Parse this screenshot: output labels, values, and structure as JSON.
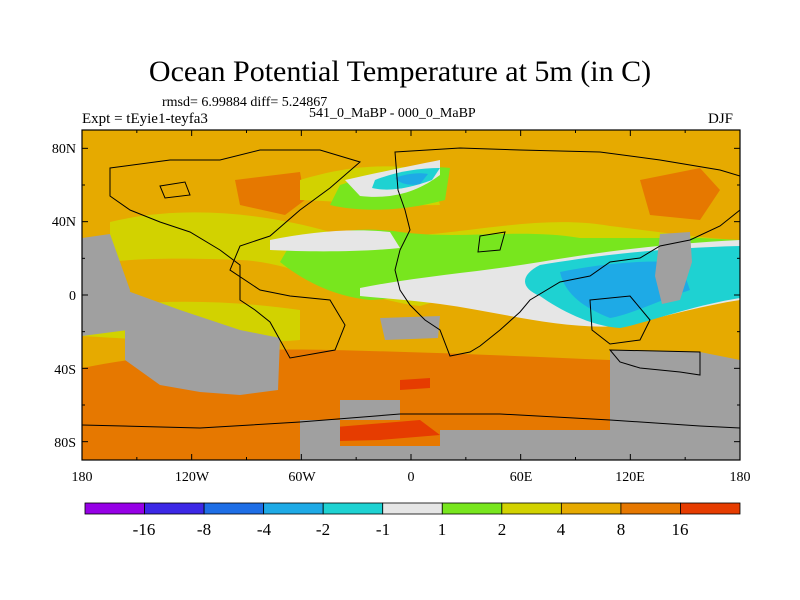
{
  "figure": {
    "title": "Ocean Potential Temperature at 5m (in C)",
    "stats": "rmsd= 6.99884 diff= 5.24867",
    "subtitle": "541_0_MaBP - 000_0_MaBP",
    "experiment": "Expt = tEyie1-teyfa3",
    "season": "DJF"
  },
  "map": {
    "lat_labels": [
      "80N",
      "40N",
      "0",
      "40S",
      "80S"
    ],
    "lon_labels": [
      "180",
      "120W",
      "60W",
      "0",
      "60E",
      "120E",
      "180"
    ],
    "land_color": "#a0a0a0",
    "coastline_color": "#000000"
  },
  "colorbar": {
    "colors": [
      "#9600e6",
      "#3c28e6",
      "#1e6ee6",
      "#1eaae6",
      "#1ed2d2",
      "#e6e6e6",
      "#78e61e",
      "#d2d200",
      "#e6aa00",
      "#e67800",
      "#e63c00"
    ],
    "labels": [
      "-16",
      "-8",
      "-4",
      "-2",
      "-1",
      "1",
      "2",
      "4",
      "8",
      "16"
    ]
  }
}
